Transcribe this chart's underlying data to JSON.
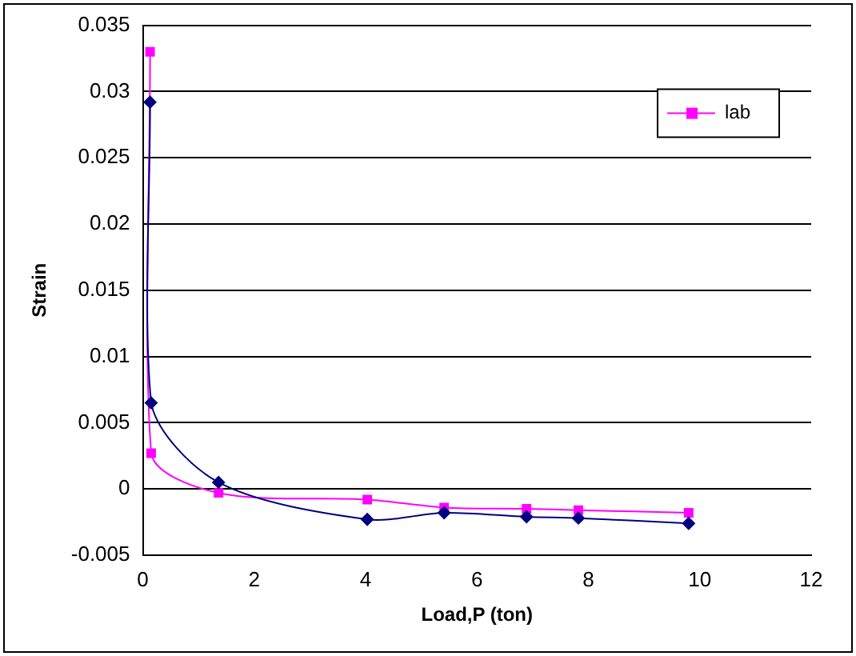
{
  "chart_data": {
    "type": "line",
    "xlabel": "Load,P (ton)",
    "ylabel": "Strain",
    "xlim": [
      0,
      12
    ],
    "xticks": [
      0,
      2,
      4,
      6,
      8,
      10,
      12
    ],
    "ylim": [
      -0.005,
      0.035
    ],
    "yticks": [
      -0.005,
      0,
      0.005,
      0.01,
      0.015,
      0.02,
      0.025,
      0.03,
      0.035
    ],
    "grid": "y",
    "legend": "top right",
    "series": [
      {
        "color": "#000080",
        "marker": "diamond",
        "x": [
          0.13,
          0.15,
          1.36,
          4.03,
          5.41,
          6.89,
          7.82,
          9.8
        ],
        "values": [
          0.0292,
          0.0065,
          0.0005,
          -0.0023,
          -0.0018,
          -0.0021,
          -0.0022,
          -0.0026
        ]
      },
      {
        "name": "lab",
        "color": "#ff00ff",
        "marker": "square",
        "x": [
          0.13,
          0.15,
          1.36,
          4.03,
          5.41,
          6.89,
          7.82,
          9.8
        ],
        "values": [
          0.033,
          0.0027,
          -0.0003,
          -0.0008,
          -0.0014,
          -0.0015,
          -0.0016,
          -0.0018
        ]
      }
    ]
  }
}
